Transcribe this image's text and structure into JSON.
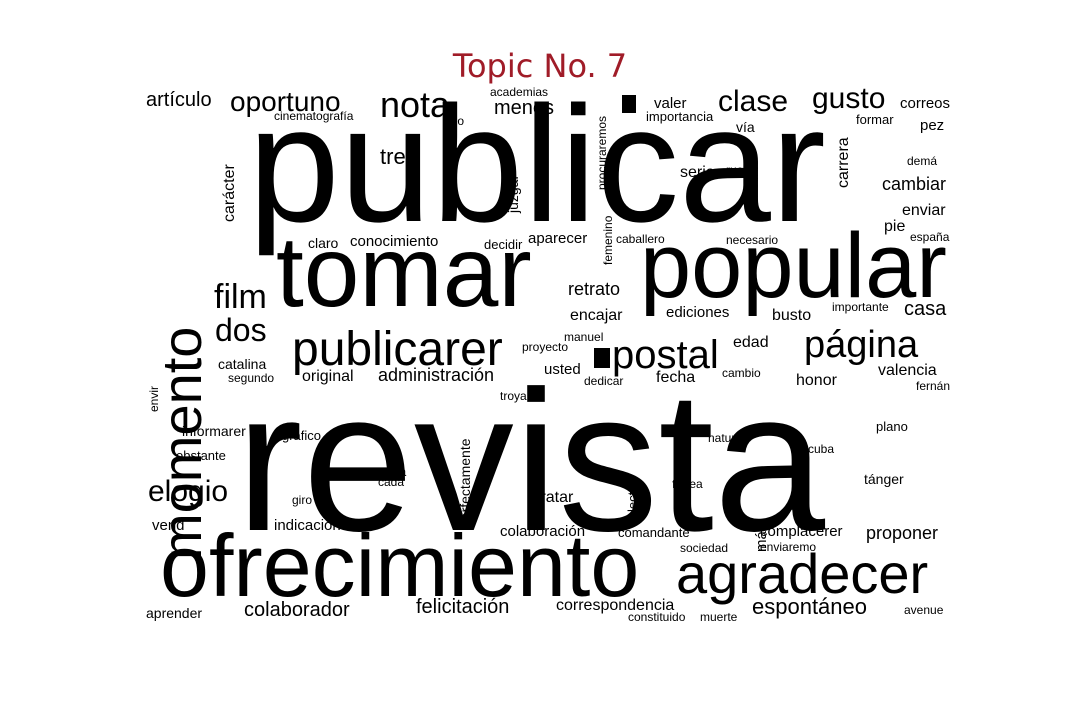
{
  "title": "Topic No. 7",
  "colors": {
    "title": "#a01c28",
    "words": "#000000",
    "background": "#ffffff"
  },
  "words": [
    "publicar",
    "revista",
    "tomar",
    "popular",
    "ofrecimiento",
    "agradecer",
    "momento",
    "publicarer",
    "postal",
    "página",
    "nota",
    "clase",
    "gusto",
    "oportuno",
    "film",
    "dos",
    "elogio",
    "tres",
    "artículo",
    "menos",
    "correos",
    "valer",
    "importancia",
    "formar",
    "pez",
    "vía",
    "academias",
    "uno",
    "cinematografía",
    "procuraremos",
    "juzgar",
    "femenino",
    "carrera",
    "serio",
    "rue",
    "demá",
    "cambiar",
    "enviar",
    "pie",
    "españa",
    "carácter",
    "claro",
    "conocimiento",
    "decidir",
    "aparecer",
    "caballero",
    "necesario",
    "retrato",
    "encajar",
    "ediciones",
    "busto",
    "importante",
    "casa",
    "manuel",
    "proyecto",
    "edad",
    "catalina",
    "segundo",
    "original",
    "administración",
    "usted",
    "dedicar",
    "fecha",
    "cambio",
    "honor",
    "valencia",
    "fernán",
    "envir",
    "troya",
    "informarer",
    "gráfico",
    "perfectamente",
    "natural",
    "cuba",
    "plano",
    "obstante",
    "seña",
    "cada",
    "lector",
    "fortea",
    "tánger",
    "giro",
    "tratar",
    "vend",
    "indicación",
    "colaboración",
    "comandante",
    "más",
    "complacerer",
    "proponer",
    "sociedad",
    "enviaremo",
    "aprender",
    "colaborador",
    "felicitación",
    "correspondencia",
    "espontáneo",
    "avenue",
    "constituido",
    "muerte"
  ]
}
